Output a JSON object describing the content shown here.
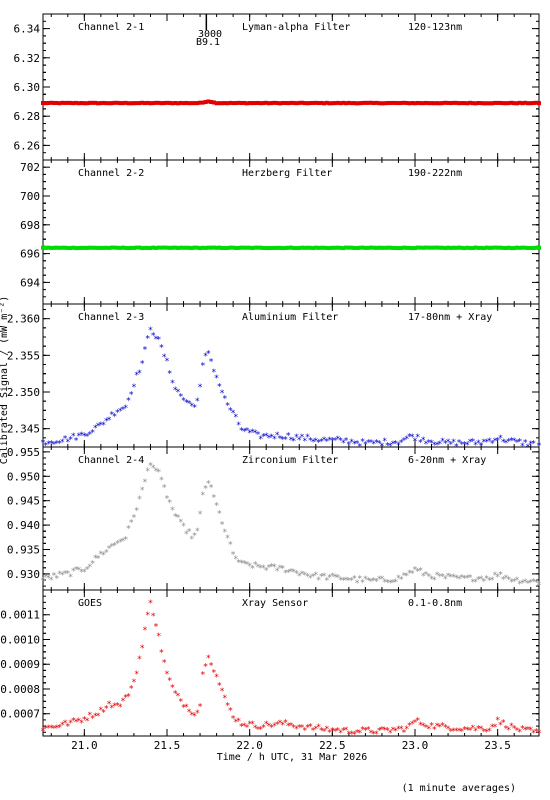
{
  "y_axis_label": "Calibrated Signal / (mW m⁻²)",
  "x_axis_label": "Time / h UTC, 31 Mar 2026",
  "footnote": "(1 minute averages)",
  "marker_labels": [
    "3000",
    "B9.1"
  ],
  "chart_data": [
    {
      "type": "scatter",
      "channel": "Channel 2-1",
      "filter": "Lyman-alpha Filter",
      "band": "120-123nm",
      "color": "#e00000",
      "xlim": [
        20.75,
        23.75
      ],
      "ylim": [
        6.25,
        6.35
      ],
      "yticks": [
        "6.26",
        "6.28",
        "6.30",
        "6.32",
        "6.34"
      ],
      "yticks_values": [
        6.26,
        6.28,
        6.3,
        6.32,
        6.34
      ],
      "baseline": 6.289,
      "noise": 0.0002,
      "bumps": [
        [
          21.75,
          0.0012,
          0.03
        ]
      ]
    },
    {
      "type": "scatter",
      "channel": "Channel 2-2",
      "filter": "Herzberg Filter",
      "band": "190-222nm",
      "color": "#00dd00",
      "xlim": [
        20.75,
        23.75
      ],
      "ylim": [
        692.5,
        702.5
      ],
      "yticks": [
        "694",
        "696",
        "698",
        "700",
        "702"
      ],
      "yticks_values": [
        694,
        696,
        698,
        700,
        702
      ],
      "baseline": 696.4,
      "noise": 0.02,
      "bumps": []
    },
    {
      "type": "scatter",
      "channel": "Channel 2-3",
      "filter": "Aluminium Filter",
      "band": "17-80nm + Xray",
      "color": "#0000cc",
      "xlim": [
        20.75,
        23.75
      ],
      "ylim": [
        2.3425,
        2.362
      ],
      "yticks": [
        "2.345",
        "2.350",
        "2.355",
        "2.360"
      ],
      "yticks_values": [
        2.345,
        2.35,
        2.355,
        2.36
      ],
      "points": [
        [
          20.75,
          2.3431
        ],
        [
          20.9,
          2.3436
        ],
        [
          21.0,
          2.3442
        ],
        [
          21.1,
          2.3455
        ],
        [
          21.2,
          2.3475
        ],
        [
          21.25,
          2.348
        ],
        [
          21.3,
          2.3512
        ],
        [
          21.35,
          2.354
        ],
        [
          21.4,
          2.3588
        ],
        [
          21.45,
          2.357
        ],
        [
          21.5,
          2.354
        ],
        [
          21.55,
          2.3505
        ],
        [
          21.6,
          2.349
        ],
        [
          21.65,
          2.3482
        ],
        [
          21.68,
          2.3485
        ],
        [
          21.7,
          2.3505
        ],
        [
          21.72,
          2.3542
        ],
        [
          21.75,
          2.3555
        ],
        [
          21.8,
          2.352
        ],
        [
          21.85,
          2.349
        ],
        [
          21.9,
          2.347
        ],
        [
          21.95,
          2.345
        ],
        [
          22.05,
          2.344
        ],
        [
          22.2,
          2.344
        ],
        [
          22.4,
          2.3435
        ],
        [
          22.6,
          2.3433
        ],
        [
          22.7,
          2.343
        ],
        [
          22.9,
          2.3432
        ],
        [
          22.98,
          2.344
        ],
        [
          23.05,
          2.3435
        ],
        [
          23.2,
          2.343
        ],
        [
          23.4,
          2.3431
        ],
        [
          23.5,
          2.3437
        ],
        [
          23.6,
          2.3432
        ],
        [
          23.75,
          2.3428
        ]
      ]
    },
    {
      "type": "scatter",
      "channel": "Channel 2-4",
      "filter": "Zirconium Filter",
      "band": "6-20nm + Xray",
      "color": "#8c8c8c",
      "xlim": [
        20.75,
        23.75
      ],
      "ylim": [
        0.9267,
        0.956
      ],
      "yticks": [
        "0.930",
        "0.935",
        "0.940",
        "0.945",
        "0.950",
        "0.955"
      ],
      "yticks_values": [
        0.93,
        0.935,
        0.94,
        0.945,
        0.95,
        0.955
      ],
      "points": [
        [
          20.75,
          0.929
        ],
        [
          20.9,
          0.93
        ],
        [
          21.0,
          0.931
        ],
        [
          21.1,
          0.934
        ],
        [
          21.2,
          0.9365
        ],
        [
          21.25,
          0.9375
        ],
        [
          21.3,
          0.942
        ],
        [
          21.35,
          0.947
        ],
        [
          21.4,
          0.953
        ],
        [
          21.45,
          0.9505
        ],
        [
          21.5,
          0.946
        ],
        [
          21.55,
          0.942
        ],
        [
          21.6,
          0.9395
        ],
        [
          21.65,
          0.9378
        ],
        [
          21.68,
          0.938
        ],
        [
          21.7,
          0.942
        ],
        [
          21.72,
          0.947
        ],
        [
          21.75,
          0.949
        ],
        [
          21.8,
          0.944
        ],
        [
          21.85,
          0.939
        ],
        [
          21.9,
          0.934
        ],
        [
          21.95,
          0.932
        ],
        [
          22.05,
          0.9315
        ],
        [
          22.2,
          0.931
        ],
        [
          22.4,
          0.9295
        ],
        [
          22.6,
          0.929
        ],
        [
          22.75,
          0.9285
        ],
        [
          22.9,
          0.929
        ],
        [
          23.0,
          0.9308
        ],
        [
          23.1,
          0.9295
        ],
        [
          23.3,
          0.929
        ],
        [
          23.45,
          0.9292
        ],
        [
          23.5,
          0.9298
        ],
        [
          23.6,
          0.9288
        ],
        [
          23.75,
          0.9283
        ]
      ]
    },
    {
      "type": "scatter",
      "channel": "GOES",
      "filter": "Xray Sensor",
      "band": "0.1-0.8nm",
      "color": "#e00000",
      "xlim": [
        20.75,
        23.75
      ],
      "ylim": [
        0.00061,
        0.0012
      ],
      "yticks": [
        "0.0007",
        "0.0008",
        "0.0009",
        "0.0010",
        "0.0011"
      ],
      "yticks_values": [
        0.0007,
        0.0008,
        0.0009,
        0.001,
        0.0011
      ],
      "points": [
        [
          20.75,
          0.00064
        ],
        [
          20.9,
          0.00066
        ],
        [
          21.0,
          0.00068
        ],
        [
          21.1,
          0.00071
        ],
        [
          21.15,
          0.00074
        ],
        [
          21.2,
          0.00073
        ],
        [
          21.25,
          0.00076
        ],
        [
          21.3,
          0.00083
        ],
        [
          21.35,
          0.00097
        ],
        [
          21.4,
          0.00116
        ],
        [
          21.45,
          0.00101
        ],
        [
          21.5,
          0.00086
        ],
        [
          21.55,
          0.00078
        ],
        [
          21.6,
          0.00074
        ],
        [
          21.65,
          0.00071
        ],
        [
          21.68,
          0.0007
        ],
        [
          21.7,
          0.00074
        ],
        [
          21.72,
          0.00088
        ],
        [
          21.75,
          0.00094
        ],
        [
          21.8,
          0.00085
        ],
        [
          21.85,
          0.00076
        ],
        [
          21.9,
          0.00069
        ],
        [
          21.95,
          0.00066
        ],
        [
          22.05,
          0.00065
        ],
        [
          22.2,
          0.00066
        ],
        [
          22.4,
          0.00064
        ],
        [
          22.6,
          0.00063
        ],
        [
          22.8,
          0.00063
        ],
        [
          22.95,
          0.00064
        ],
        [
          23.0,
          0.00067
        ],
        [
          23.1,
          0.00065
        ],
        [
          23.3,
          0.00064
        ],
        [
          23.45,
          0.00064
        ],
        [
          23.5,
          0.00067
        ],
        [
          23.6,
          0.00064
        ],
        [
          23.75,
          0.00062
        ]
      ]
    }
  ],
  "x_ticks": [
    "21.0",
    "21.5",
    "22.0",
    "22.5",
    "23.0",
    "23.5"
  ],
  "x_ticks_values": [
    21.0,
    21.5,
    22.0,
    22.5,
    23.0,
    23.5
  ],
  "event_time": 21.75
}
